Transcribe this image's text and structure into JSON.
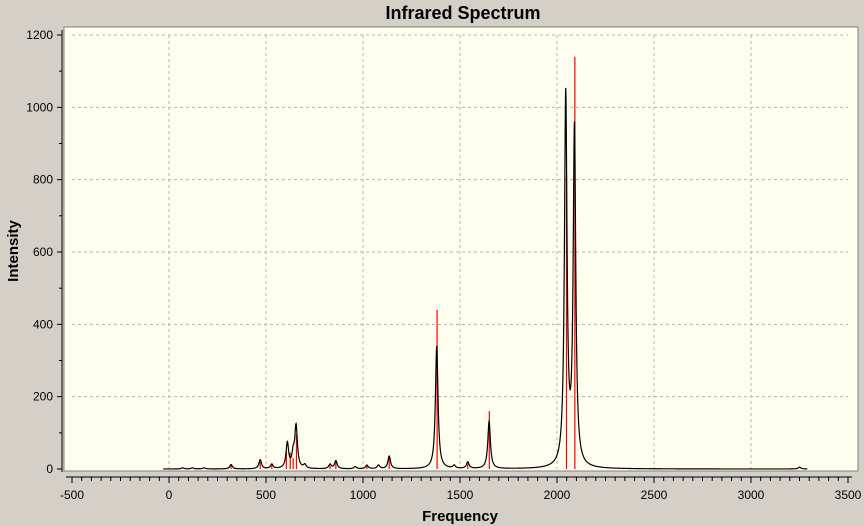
{
  "chart_data": {
    "type": "line",
    "title": "Infrared Spectrum",
    "xlabel": "Frequency",
    "ylabel": "Intensity",
    "xlim": [
      -500,
      3500
    ],
    "ylim": [
      0,
      1200
    ],
    "x_ticks": [
      -500,
      0,
      500,
      1000,
      1500,
      2000,
      2500,
      3000,
      3500
    ],
    "y_ticks": [
      0,
      200,
      400,
      600,
      800,
      1000,
      1200
    ],
    "grid": true,
    "colors": {
      "spectrum": "#000000",
      "sticks": "#ff0000",
      "plot_bg": "#fffff0",
      "frame_bg": "#d4d0c8",
      "grid": "#b4b4b4"
    },
    "x_start": -30,
    "x_end": 3290,
    "series": [
      {
        "kind": "spectrum",
        "peaks": [
          {
            "x": 70,
            "y": 3
          },
          {
            "x": 120,
            "y": 3
          },
          {
            "x": 180,
            "y": 3
          },
          {
            "x": 320,
            "y": 12
          },
          {
            "x": 470,
            "y": 25
          },
          {
            "x": 530,
            "y": 12
          },
          {
            "x": 610,
            "y": 70
          },
          {
            "x": 640,
            "y": 35
          },
          {
            "x": 655,
            "y": 115
          },
          {
            "x": 700,
            "y": 10
          },
          {
            "x": 830,
            "y": 12
          },
          {
            "x": 860,
            "y": 22
          },
          {
            "x": 960,
            "y": 6
          },
          {
            "x": 1020,
            "y": 10
          },
          {
            "x": 1080,
            "y": 10
          },
          {
            "x": 1135,
            "y": 35
          },
          {
            "x": 1380,
            "y": 340
          },
          {
            "x": 1470,
            "y": 8
          },
          {
            "x": 1540,
            "y": 18
          },
          {
            "x": 1650,
            "y": 130
          },
          {
            "x": 2045,
            "y": 1025
          },
          {
            "x": 2090,
            "y": 930
          },
          {
            "x": 3250,
            "y": 5
          }
        ]
      },
      {
        "kind": "sticks",
        "x": [
          320,
          470,
          530,
          605,
          625,
          640,
          657,
          830,
          860,
          1020,
          1135,
          1382,
          1540,
          1651,
          2049,
          2092
        ],
        "values": [
          12,
          20,
          12,
          50,
          45,
          30,
          95,
          10,
          20,
          8,
          30,
          440,
          15,
          160,
          810,
          1140
        ]
      }
    ]
  }
}
